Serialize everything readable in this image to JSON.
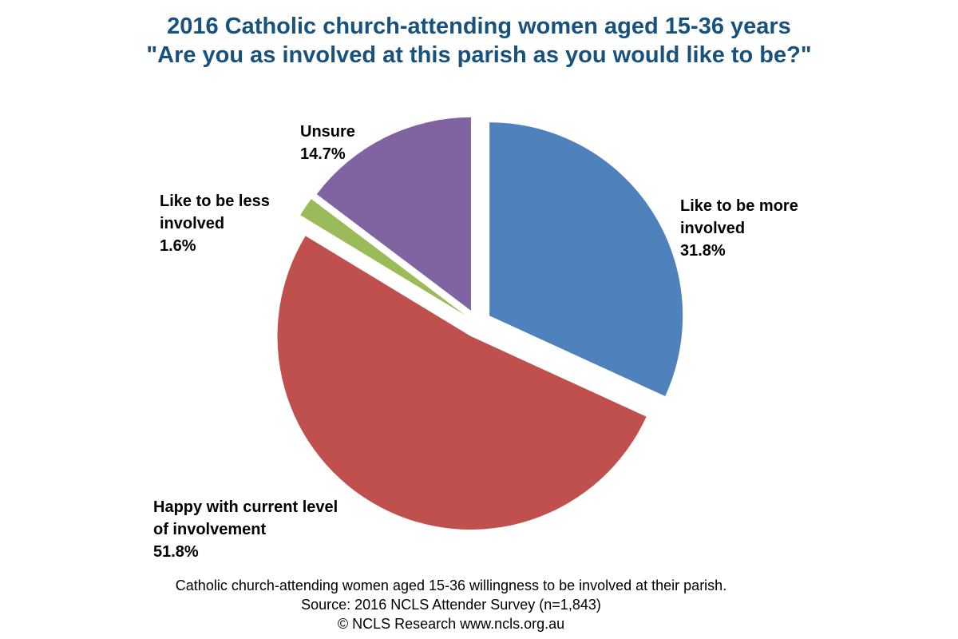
{
  "chart_data": {
    "type": "pie",
    "title": [
      "2016 Catholic church-attending women aged 15-36 years",
      "\"Are you as involved at this parish as you would like to be?\""
    ],
    "categories": [
      "Like to be more involved",
      "Happy with current level of involvement",
      "Like to be less involved",
      "Unsure"
    ],
    "values": [
      31.8,
      51.8,
      1.6,
      14.7
    ],
    "value_labels": [
      "31.8%",
      "51.8%",
      "1.6%",
      "14.7%"
    ],
    "colors": [
      "#4f81bd",
      "#c0504d",
      "#9bbb59",
      "#8064a2"
    ],
    "exploded": true,
    "start": "12 o'clock, clockwise",
    "slice_labels": [
      {
        "lines": [
          "Like to be more",
          "involved"
        ],
        "value": "31.8%"
      },
      {
        "lines": [
          "Happy with current level",
          "of involvement"
        ],
        "value": "51.8%"
      },
      {
        "lines": [
          "Like to be less",
          "involved"
        ],
        "value": "1.6%"
      },
      {
        "lines": [
          "Unsure"
        ],
        "value": "14.7%"
      }
    ]
  },
  "captions": [
    "Catholic church-attending women aged 15-36 willingness to be involved at their parish.",
    "Source: 2016 NCLS Attender Survey (n=1,843)",
    "© NCLS Research www.ncls.org.au"
  ]
}
